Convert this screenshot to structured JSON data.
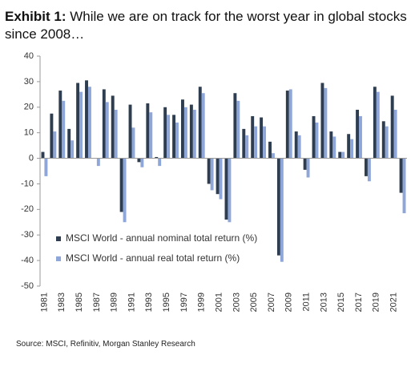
{
  "chart_data": {
    "type": "bar",
    "title_label": "Exhibit 1:",
    "title": "While we are on track for the worst year in global stocks since 2008…",
    "source": "Source: MSCI, Refinitiv, Morgan Stanley Research",
    "categories": [
      "1981",
      null,
      "1983",
      null,
      "1985",
      null,
      "1987",
      null,
      "1989",
      null,
      "1991",
      null,
      "1993",
      null,
      "1995",
      null,
      "1997",
      null,
      "1999",
      null,
      "2001",
      null,
      "2003",
      null,
      "2005",
      null,
      "2007",
      null,
      "2009",
      null,
      "2011",
      null,
      "2013",
      null,
      "2015",
      null,
      "2017",
      null,
      "2019",
      null,
      "2021",
      null
    ],
    "series": [
      {
        "name": "MSCI World - annual nominal total return (%)",
        "color": "#2e3d4f",
        "values": [
          2.5,
          17.5,
          26.5,
          11.5,
          29.5,
          30.5,
          0,
          27,
          24.5,
          -21,
          21,
          -1.5,
          21.5,
          0.5,
          20,
          17,
          23,
          21,
          28,
          -10,
          -14,
          -24,
          25.5,
          11.5,
          16.5,
          16,
          6.5,
          -38,
          26.5,
          10.5,
          -4.5,
          16.5,
          29.5,
          10.5,
          2.5,
          9.5,
          19,
          -7,
          28,
          14.5,
          24.5,
          -13.5
        ]
      },
      {
        "name": "MSCI World - annual real total return (%)",
        "color": "#8ea6d8",
        "values": [
          -7,
          10.5,
          22.5,
          7,
          26,
          28,
          -3,
          22,
          19,
          -25,
          12,
          -3.5,
          18,
          -3,
          17,
          14,
          20,
          19,
          25.5,
          -12.5,
          -16,
          -25,
          22.5,
          9,
          12.5,
          12.5,
          2,
          -40.5,
          27,
          9,
          -7.5,
          14,
          27.5,
          8.5,
          2.5,
          7.5,
          16.5,
          -9,
          26,
          12.5,
          19,
          -21.5
        ]
      }
    ],
    "ylim": [
      -50,
      40
    ],
    "yticks": [
      -50,
      -40,
      -30,
      -20,
      -10,
      0,
      10,
      20,
      30,
      40
    ],
    "grid": false,
    "legend": "lower left"
  }
}
